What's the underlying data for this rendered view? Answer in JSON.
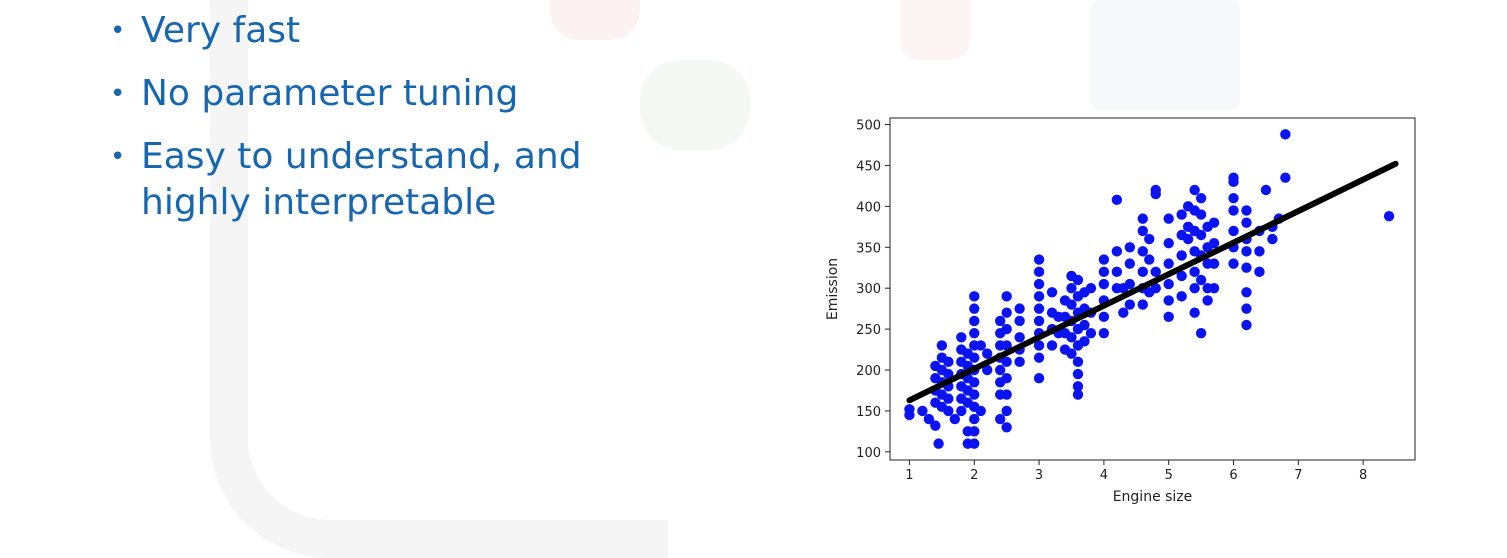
{
  "slide": {
    "bullets": [
      {
        "text": "Very fast"
      },
      {
        "text": "No parameter tuning"
      },
      {
        "text": "Easy to understand, and highly interpretable"
      }
    ],
    "colors": {
      "bullet_text": "#1766b0",
      "points": "#0b14f0",
      "fit_line": "#000000"
    }
  },
  "chart_data": {
    "type": "scatter",
    "xlabel": "Engine size",
    "ylabel": "Emission",
    "xlim": [
      0.7,
      8.8
    ],
    "ylim": [
      90,
      508
    ],
    "xticks": [
      1,
      2,
      3,
      4,
      5,
      6,
      7,
      8
    ],
    "yticks": [
      100,
      150,
      200,
      250,
      300,
      350,
      400,
      450,
      500
    ],
    "grid": false,
    "points": [
      [
        1.0,
        145
      ],
      [
        1.0,
        152
      ],
      [
        1.2,
        150
      ],
      [
        1.3,
        140
      ],
      [
        1.4,
        132
      ],
      [
        1.4,
        160
      ],
      [
        1.4,
        175
      ],
      [
        1.4,
        190
      ],
      [
        1.4,
        205
      ],
      [
        1.45,
        110
      ],
      [
        1.5,
        155
      ],
      [
        1.5,
        170
      ],
      [
        1.5,
        185
      ],
      [
        1.5,
        200
      ],
      [
        1.5,
        215
      ],
      [
        1.5,
        230
      ],
      [
        1.6,
        150
      ],
      [
        1.6,
        165
      ],
      [
        1.6,
        180
      ],
      [
        1.6,
        195
      ],
      [
        1.6,
        210
      ],
      [
        1.7,
        140
      ],
      [
        1.8,
        150
      ],
      [
        1.8,
        165
      ],
      [
        1.8,
        180
      ],
      [
        1.8,
        195
      ],
      [
        1.8,
        210
      ],
      [
        1.8,
        225
      ],
      [
        1.8,
        240
      ],
      [
        1.9,
        110
      ],
      [
        1.9,
        125
      ],
      [
        1.9,
        160
      ],
      [
        1.9,
        175
      ],
      [
        1.9,
        190
      ],
      [
        1.9,
        205
      ],
      [
        1.9,
        220
      ],
      [
        2.0,
        110
      ],
      [
        2.0,
        125
      ],
      [
        2.0,
        140
      ],
      [
        2.0,
        155
      ],
      [
        2.0,
        170
      ],
      [
        2.0,
        185
      ],
      [
        2.0,
        200
      ],
      [
        2.0,
        215
      ],
      [
        2.0,
        230
      ],
      [
        2.0,
        245
      ],
      [
        2.0,
        260
      ],
      [
        2.0,
        275
      ],
      [
        2.0,
        290
      ],
      [
        2.1,
        150
      ],
      [
        2.1,
        230
      ],
      [
        2.2,
        200
      ],
      [
        2.2,
        220
      ],
      [
        2.4,
        140
      ],
      [
        2.4,
        170
      ],
      [
        2.4,
        185
      ],
      [
        2.4,
        200
      ],
      [
        2.4,
        215
      ],
      [
        2.4,
        230
      ],
      [
        2.4,
        245
      ],
      [
        2.4,
        260
      ],
      [
        2.5,
        130
      ],
      [
        2.5,
        150
      ],
      [
        2.5,
        170
      ],
      [
        2.5,
        190
      ],
      [
        2.5,
        210
      ],
      [
        2.5,
        230
      ],
      [
        2.5,
        250
      ],
      [
        2.5,
        270
      ],
      [
        2.5,
        290
      ],
      [
        2.7,
        210
      ],
      [
        2.7,
        225
      ],
      [
        2.7,
        240
      ],
      [
        2.7,
        260
      ],
      [
        2.7,
        275
      ],
      [
        3.0,
        190
      ],
      [
        3.0,
        215
      ],
      [
        3.0,
        230
      ],
      [
        3.0,
        245
      ],
      [
        3.0,
        260
      ],
      [
        3.0,
        275
      ],
      [
        3.0,
        290
      ],
      [
        3.0,
        305
      ],
      [
        3.0,
        320
      ],
      [
        3.0,
        335
      ],
      [
        3.2,
        230
      ],
      [
        3.2,
        250
      ],
      [
        3.2,
        270
      ],
      [
        3.2,
        295
      ],
      [
        3.3,
        245
      ],
      [
        3.3,
        265
      ],
      [
        3.4,
        225
      ],
      [
        3.4,
        245
      ],
      [
        3.4,
        265
      ],
      [
        3.4,
        285
      ],
      [
        3.5,
        220
      ],
      [
        3.5,
        240
      ],
      [
        3.5,
        260
      ],
      [
        3.5,
        280
      ],
      [
        3.5,
        300
      ],
      [
        3.5,
        315
      ],
      [
        3.6,
        170
      ],
      [
        3.6,
        180
      ],
      [
        3.6,
        195
      ],
      [
        3.6,
        210
      ],
      [
        3.6,
        230
      ],
      [
        3.6,
        250
      ],
      [
        3.6,
        270
      ],
      [
        3.6,
        290
      ],
      [
        3.6,
        310
      ],
      [
        3.7,
        235
      ],
      [
        3.7,
        255
      ],
      [
        3.7,
        275
      ],
      [
        3.7,
        295
      ],
      [
        3.8,
        245
      ],
      [
        3.8,
        270
      ],
      [
        3.8,
        300
      ],
      [
        4.0,
        245
      ],
      [
        4.0,
        265
      ],
      [
        4.0,
        285
      ],
      [
        4.0,
        305
      ],
      [
        4.0,
        320
      ],
      [
        4.0,
        335
      ],
      [
        4.2,
        300
      ],
      [
        4.2,
        320
      ],
      [
        4.2,
        345
      ],
      [
        4.3,
        270
      ],
      [
        4.3,
        300
      ],
      [
        4.4,
        280
      ],
      [
        4.4,
        305
      ],
      [
        4.4,
        330
      ],
      [
        4.4,
        350
      ],
      [
        4.6,
        280
      ],
      [
        4.6,
        300
      ],
      [
        4.6,
        320
      ],
      [
        4.6,
        345
      ],
      [
        4.6,
        370
      ],
      [
        4.6,
        385
      ],
      [
        4.2,
        408
      ],
      [
        4.7,
        295
      ],
      [
        4.7,
        335
      ],
      [
        4.7,
        360
      ],
      [
        4.8,
        300
      ],
      [
        4.8,
        320
      ],
      [
        4.8,
        415
      ],
      [
        4.8,
        420
      ],
      [
        5.0,
        265
      ],
      [
        5.0,
        285
      ],
      [
        5.0,
        305
      ],
      [
        5.0,
        330
      ],
      [
        5.0,
        355
      ],
      [
        5.0,
        385
      ],
      [
        5.2,
        290
      ],
      [
        5.2,
        315
      ],
      [
        5.2,
        340
      ],
      [
        5.2,
        365
      ],
      [
        5.2,
        390
      ],
      [
        5.3,
        360
      ],
      [
        5.3,
        375
      ],
      [
        5.3,
        400
      ],
      [
        5.4,
        270
      ],
      [
        5.4,
        300
      ],
      [
        5.4,
        320
      ],
      [
        5.4,
        345
      ],
      [
        5.4,
        370
      ],
      [
        5.4,
        395
      ],
      [
        5.4,
        420
      ],
      [
        5.5,
        245
      ],
      [
        5.5,
        310
      ],
      [
        5.5,
        340
      ],
      [
        5.5,
        365
      ],
      [
        5.5,
        390
      ],
      [
        5.5,
        410
      ],
      [
        5.6,
        285
      ],
      [
        5.6,
        300
      ],
      [
        5.6,
        330
      ],
      [
        5.6,
        350
      ],
      [
        5.6,
        375
      ],
      [
        5.7,
        300
      ],
      [
        5.7,
        330
      ],
      [
        5.7,
        355
      ],
      [
        5.7,
        380
      ],
      [
        6.0,
        330
      ],
      [
        6.0,
        350
      ],
      [
        6.0,
        370
      ],
      [
        6.0,
        395
      ],
      [
        6.0,
        410
      ],
      [
        6.0,
        430
      ],
      [
        6.0,
        435
      ],
      [
        6.2,
        255
      ],
      [
        6.2,
        275
      ],
      [
        6.2,
        295
      ],
      [
        6.2,
        325
      ],
      [
        6.2,
        345
      ],
      [
        6.2,
        360
      ],
      [
        6.2,
        380
      ],
      [
        6.2,
        395
      ],
      [
        6.4,
        320
      ],
      [
        6.4,
        345
      ],
      [
        6.4,
        370
      ],
      [
        6.5,
        420
      ],
      [
        6.6,
        360
      ],
      [
        6.6,
        375
      ],
      [
        6.7,
        385
      ],
      [
        6.8,
        435
      ],
      [
        6.8,
        488
      ],
      [
        8.4,
        388
      ]
    ],
    "fit_line": {
      "x": [
        1.0,
        8.5
      ],
      "y": [
        163,
        452
      ]
    }
  }
}
